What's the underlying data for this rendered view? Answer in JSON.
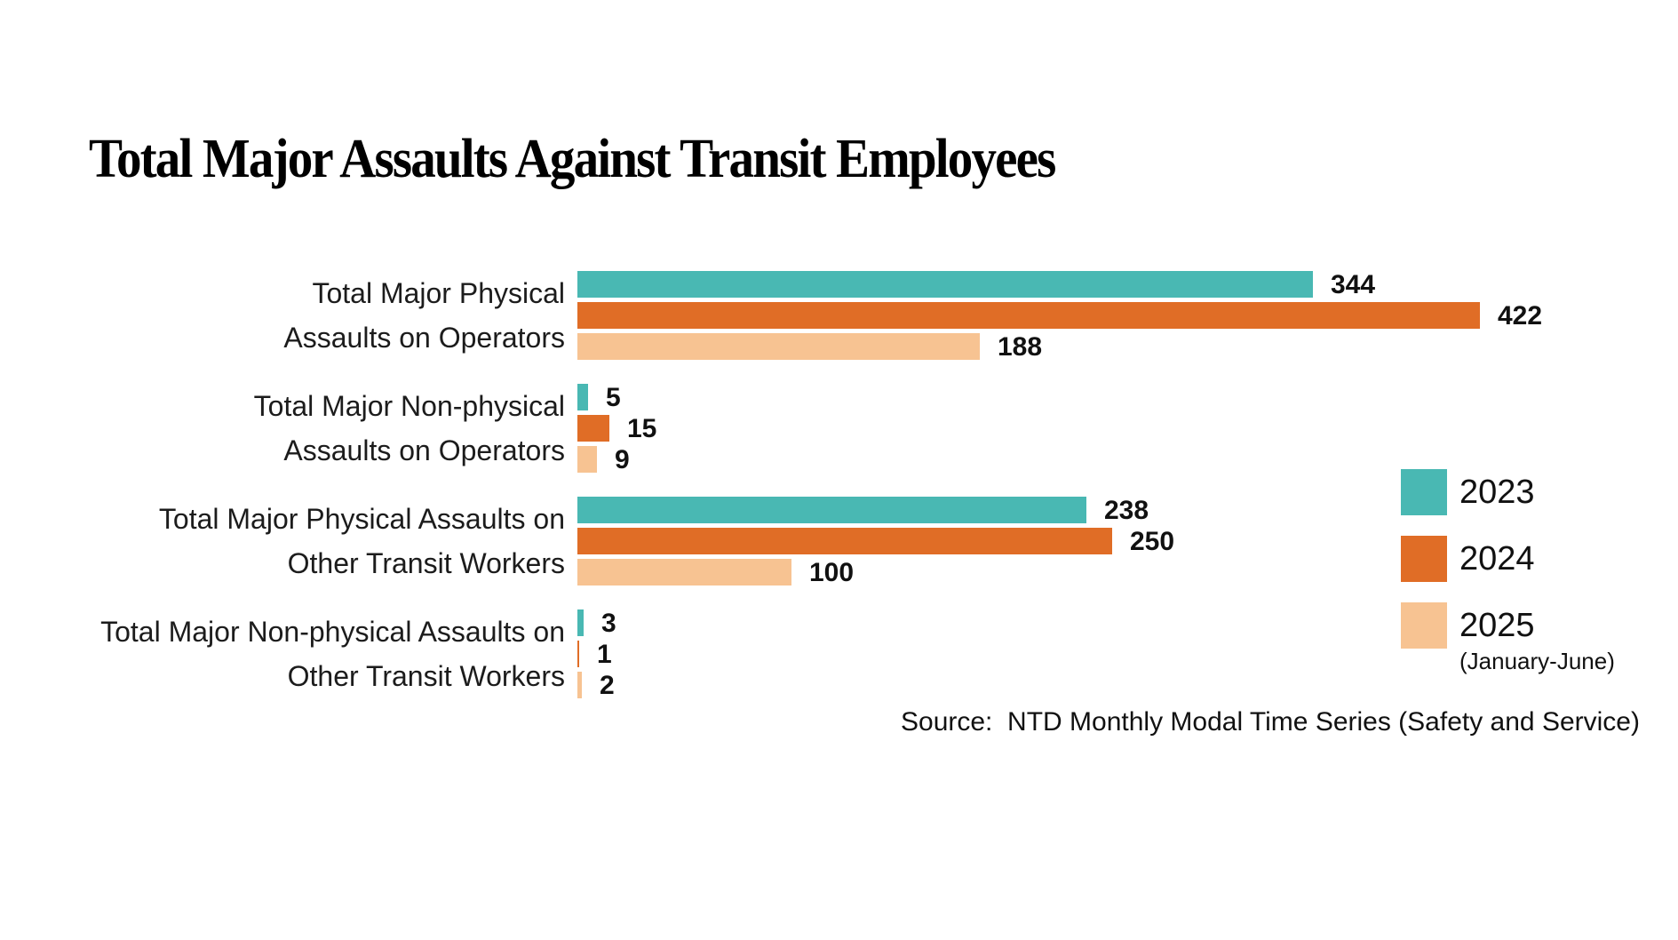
{
  "title": "Total Major Assaults Against Transit Employees",
  "source": "Source:  NTD Monthly Modal Time Series (Safety and Service)",
  "colors": {
    "teal_2023": "#49B8B3",
    "orange_2024": "#E06D26",
    "peach_2025": "#F7C392",
    "text": "#111111",
    "background": "#FFFFFF"
  },
  "legend": {
    "items": [
      {
        "label": "2023",
        "color": "#49B8B3",
        "note": ""
      },
      {
        "label": "2024",
        "color": "#E06D26",
        "note": ""
      },
      {
        "label": "2025",
        "color": "#F7C392",
        "note": "(January-June)"
      }
    ]
  },
  "chart_data": {
    "type": "bar",
    "orientation": "horizontal",
    "title": "Total Major Assaults Against Transit Employees",
    "categories": [
      "Total Major Physical Assaults on Operators",
      "Total Major Non-physical Assaults on Operators",
      "Total Major Physical Assaults on Other Transit Workers",
      "Total Major Non-physical Assaults on Other Transit Workers"
    ],
    "category_lines": [
      [
        "Total Major Physical",
        "Assaults on Operators"
      ],
      [
        "Total Major Non-physical",
        "Assaults on Operators"
      ],
      [
        "Total Major Physical Assaults on",
        "Other Transit Workers"
      ],
      [
        "Total Major Non-physical Assaults on",
        "Other Transit Workers"
      ]
    ],
    "series": [
      {
        "name": "2023",
        "color": "#49B8B3",
        "values": [
          344,
          5,
          238,
          3
        ]
      },
      {
        "name": "2024",
        "color": "#E06D26",
        "values": [
          422,
          15,
          250,
          1
        ]
      },
      {
        "name": "2025 (January-June)",
        "color": "#F7C392",
        "values": [
          188,
          9,
          100,
          2
        ]
      }
    ],
    "value_labels_shown": true,
    "xlim": [
      0,
      450
    ],
    "grid": false,
    "axes_shown": false,
    "legend_position": "right",
    "source": "NTD Monthly Modal Time Series (Safety and Service)"
  }
}
